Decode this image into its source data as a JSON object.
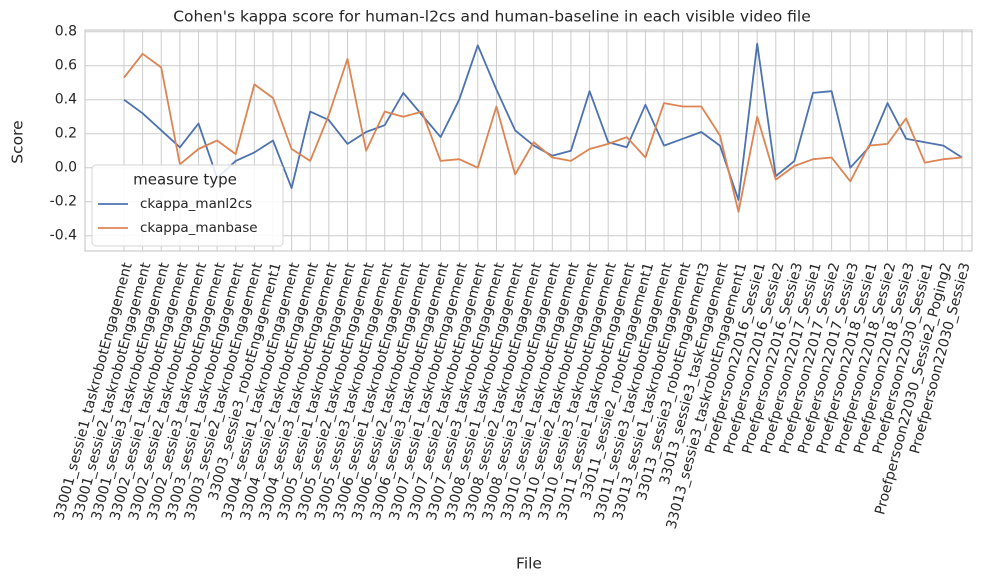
{
  "chart_data": {
    "type": "line",
    "title": "Cohen's kappa score for human-l2cs and human-baseline in each visible video file",
    "x_label": "File",
    "y_label": "Score",
    "categories": [
      "33001_sessie1_taskrobotEngagement",
      "33001_sessie2_taskrobotEngagement",
      "33001_sessie3_taskrobotEngagement",
      "33002_sessie1_taskrobotEngagement",
      "33002_sessie2_taskrobotEngagement",
      "33002_sessie3_taskrobotEngagement",
      "33003_sessie1_taskrobotEngagement",
      "33003_sessie2_taskrobotEngagement",
      "33003_sessie3_robotEngagement1",
      "33004_sessie1_taskrobotEngagement",
      "33004_sessie2_taskrobotEngagement",
      "33004_sessie3_taskrobotEngagement",
      "33005_sessie1_taskrobotEngagement",
      "33005_sessie2_taskrobotEngagement",
      "33005_sessie3_taskrobotEngagement",
      "33006_sessie1_taskrobotEngagement",
      "33006_sessie2_taskrobotEngagement",
      "33006_sessie3_taskrobotEngagement",
      "33007_sessie1_taskrobotEngagement",
      "33007_sessie2_taskrobotEngagement",
      "33007_sessie3_taskrobotEngagement",
      "33008_sessie1_taskrobotEngagement",
      "33008_sessie2_taskrobotEngagement",
      "33008_sessie3_taskrobotEngagement",
      "33010_sessie1_taskrobotEngagement",
      "33010_sessie2_taskrobotEngagement",
      "33010_sessie3_taskrobotEngagement",
      "33011_sessie1_taskrobotEngagement",
      "33011_sessie2_robotEngagement1",
      "33011_sessie3_taskrobotEngagement",
      "33013_sessie1_taskrobotEngagement",
      "33013_sessie3_robotEngagement3",
      "33013_sessie3_taskEngagement",
      "33013_sessie3_taskrobotEngagement1",
      "Proefpersoon22016_Sessie1",
      "Proefpersoon22016_Sessie2",
      "Proefpersoon22016_Sessie3",
      "Proefpersoon22017_Sessie1",
      "Proefpersoon22017_Sessie2",
      "Proefpersoon22017_Sessie3",
      "Proefpersoon22018_Sessie1",
      "Proefpersoon22018_Sessie2",
      "Proefpersoon22018_Sessie3",
      "Proefpersoon22030_Sessie1",
      "Proefpersoon22030_Sessie2_Poging2",
      "Proefpersoon22030_Sessie3"
    ],
    "series": [
      {
        "name": "ckappa_manl2cs",
        "color": "#4c72b0",
        "values": [
          0.4,
          0.32,
          0.22,
          0.12,
          0.26,
          -0.06,
          0.04,
          0.09,
          0.16,
          -0.12,
          0.33,
          0.28,
          0.14,
          0.21,
          0.25,
          0.44,
          0.31,
          0.18,
          0.4,
          0.72,
          0.46,
          0.22,
          0.13,
          0.07,
          0.1,
          0.45,
          0.15,
          0.12,
          0.37,
          0.13,
          0.17,
          0.21,
          0.13,
          -0.19,
          0.73,
          -0.05,
          0.04,
          0.44,
          0.45,
          0.0,
          0.12,
          0.38,
          0.17,
          0.15,
          0.13,
          0.06
        ]
      },
      {
        "name": "ckappa_manbase",
        "color": "#dd8452",
        "values": [
          0.53,
          0.67,
          0.59,
          0.02,
          0.11,
          0.16,
          0.08,
          0.49,
          0.41,
          0.11,
          0.04,
          0.31,
          0.64,
          0.1,
          0.33,
          0.3,
          0.33,
          0.04,
          0.05,
          0.0,
          0.36,
          -0.04,
          0.15,
          0.06,
          0.04,
          0.11,
          0.14,
          0.18,
          0.06,
          0.38,
          0.36,
          0.36,
          0.19,
          -0.26,
          0.3,
          -0.07,
          0.01,
          0.05,
          0.06,
          -0.08,
          0.13,
          0.14,
          0.29,
          0.03,
          0.05,
          0.06
        ]
      }
    ],
    "legend_title": "measure type",
    "legend": "lower left",
    "ylim": [
      -0.49,
      0.81
    ],
    "yticks": [
      -0.4,
      -0.2,
      {
        "value": 0,
        "label": "0.0"
      },
      0.2,
      0.4,
      0.6,
      0.8
    ],
    "grid": true
  }
}
